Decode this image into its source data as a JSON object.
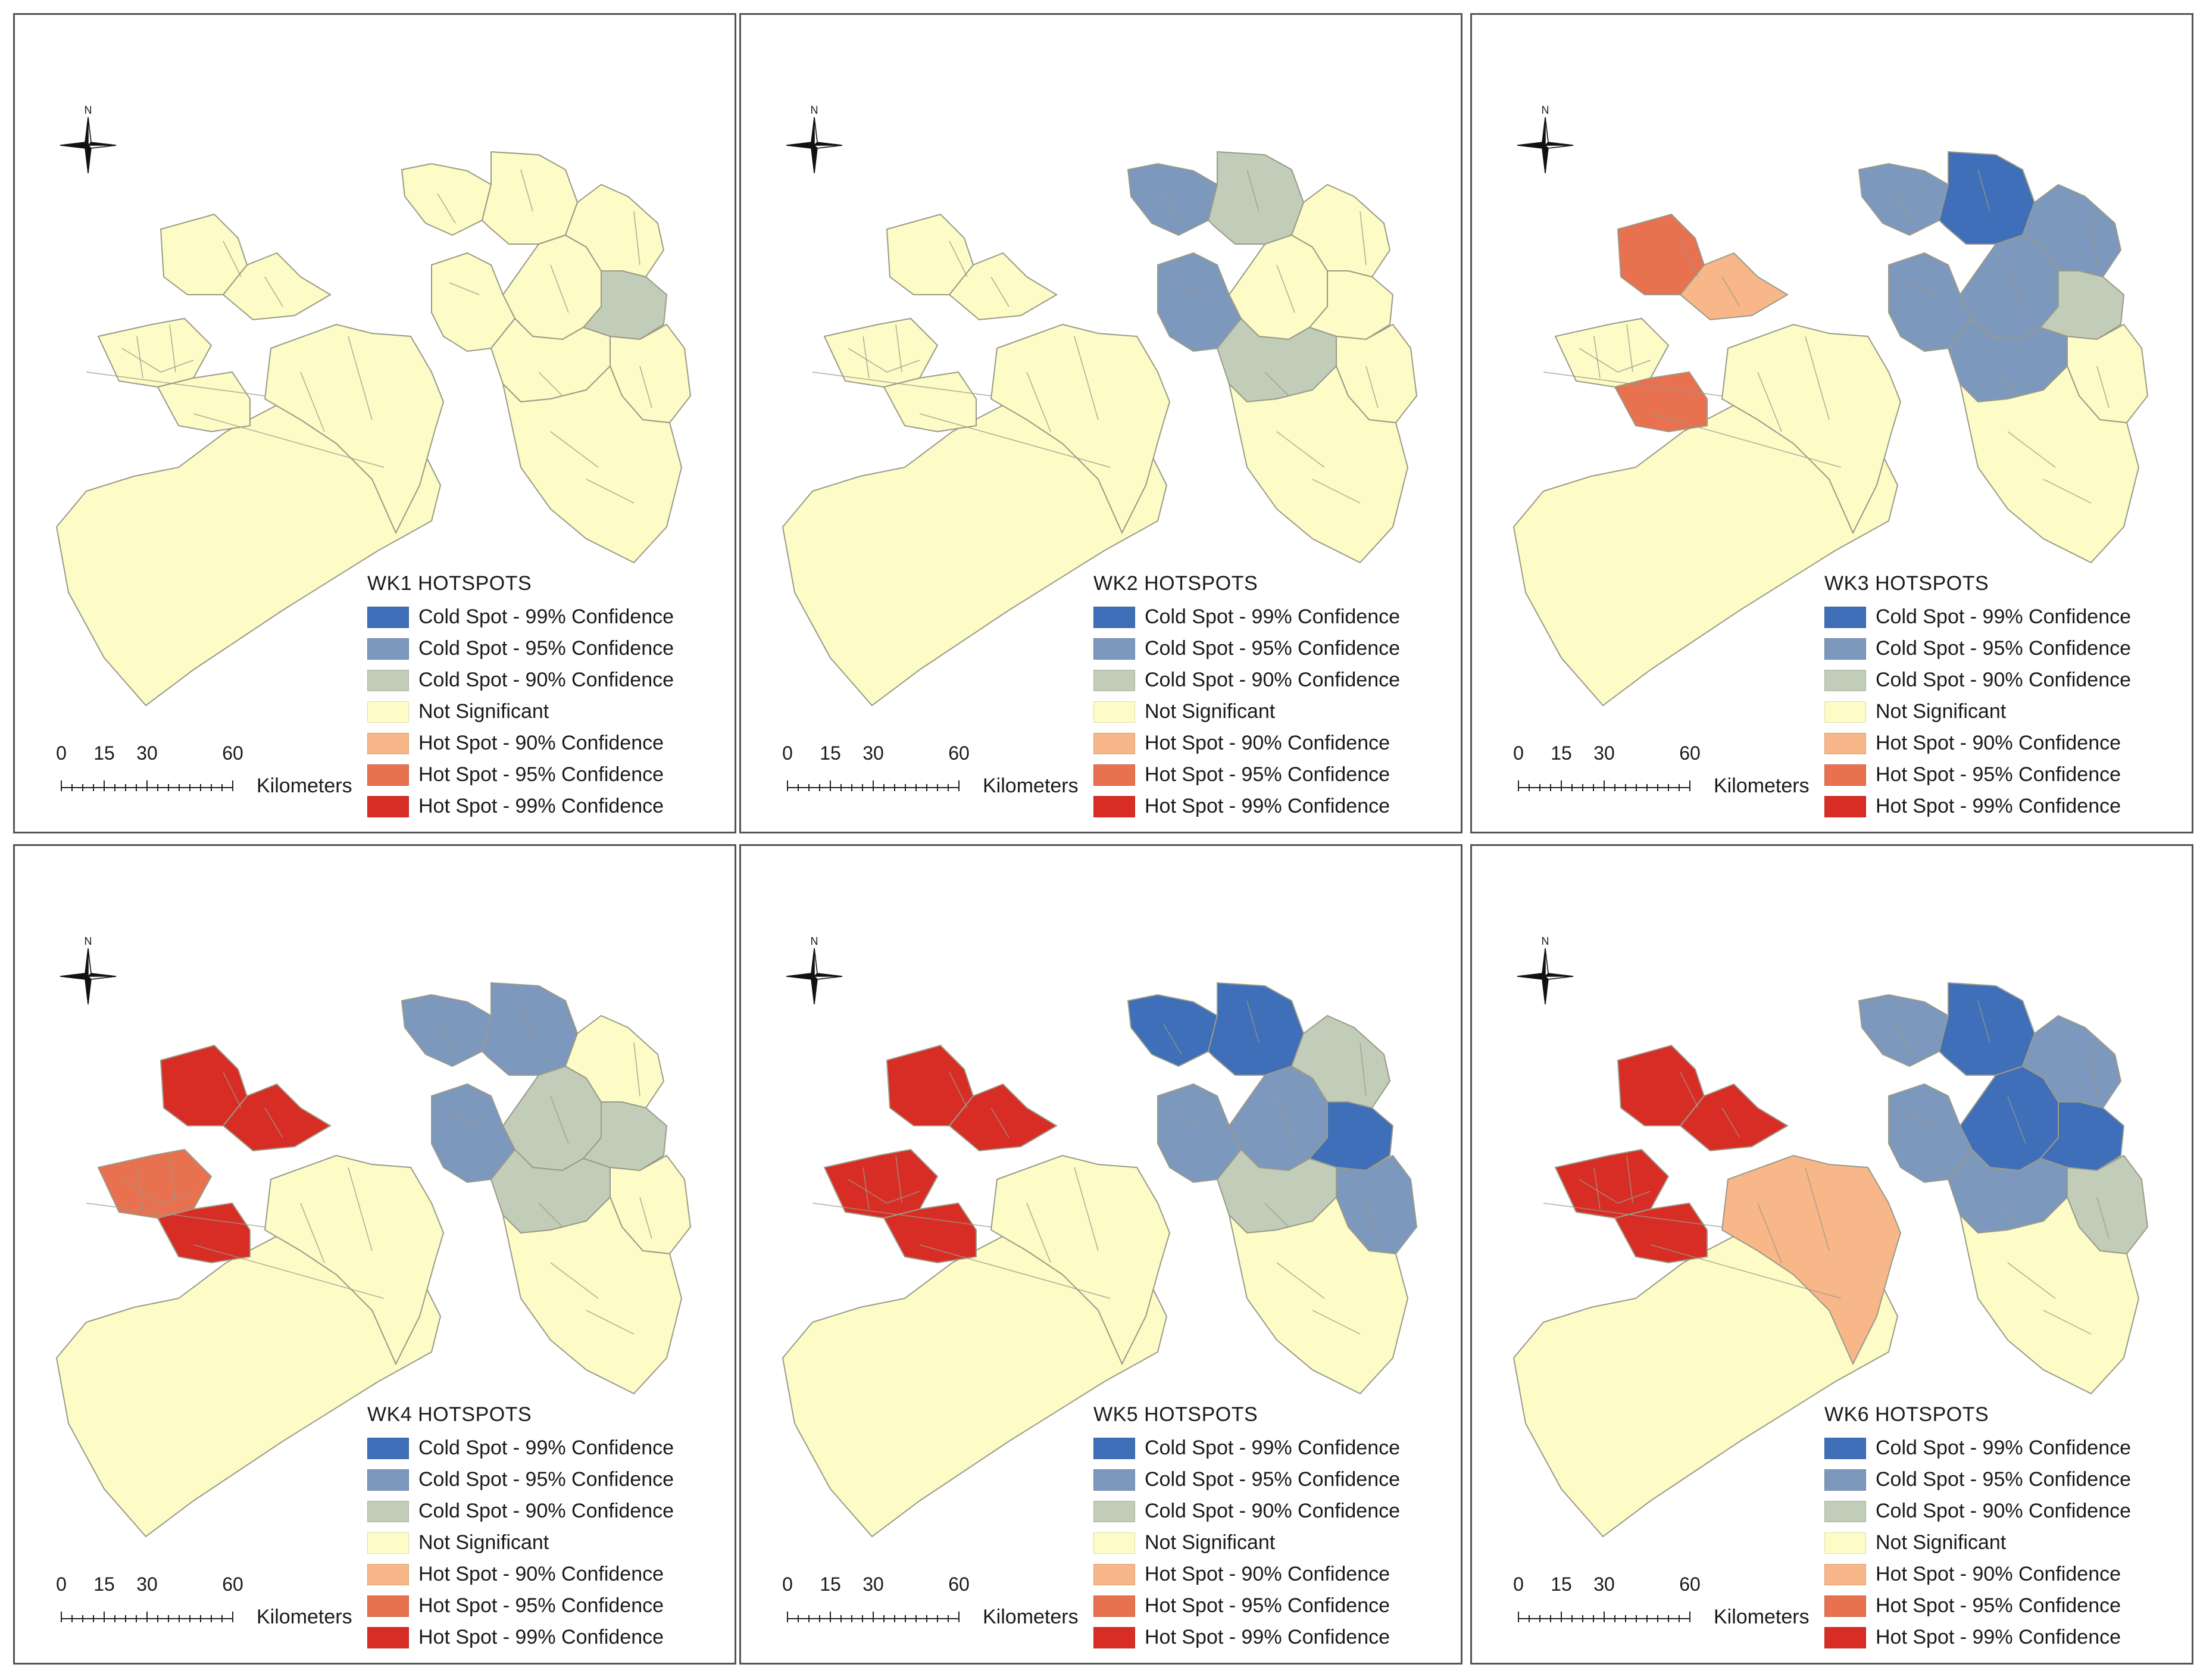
{
  "figure": {
    "legend_entries": [
      {
        "label": "Cold Spot - 99% Confidence",
        "color": "#3f6fb8"
      },
      {
        "label": "Cold Spot - 95% Confidence",
        "color": "#7d98bd"
      },
      {
        "label": "Cold Spot - 90% Confidence",
        "color": "#c2cdb9"
      },
      {
        "label": "Not Significant",
        "color": "#fdfbc6"
      },
      {
        "label": "Hot Spot - 90% Confidence",
        "color": "#f7b788"
      },
      {
        "label": "Hot Spot - 95% Confidence",
        "color": "#e8714f"
      },
      {
        "label": "Hot Spot - 99% Confidence",
        "color": "#d82d25"
      }
    ],
    "scale_bar": {
      "ticks": [
        "0",
        "15",
        "30",
        "60"
      ],
      "unit": "Kilometers"
    },
    "north_arrow": {
      "letter": "N",
      "icon": "compass-rose-icon"
    },
    "boundary_color": "#9a9a88"
  },
  "panels": [
    {
      "title": "WK1 HOTSPOTS",
      "regions": {
        "NW": "ns",
        "NWb": "ns",
        "W": "ns",
        "WS": "ns",
        "C": "ns",
        "N1": "ns",
        "N2": "ns",
        "N3": "ns",
        "NE": "ns",
        "E1": "c90",
        "E2": "ns",
        "M1": "ns",
        "M2": "ns",
        "SE": "ns",
        "S": "ns"
      }
    },
    {
      "title": "WK2 HOTSPOTS",
      "regions": {
        "NW": "ns",
        "NWb": "ns",
        "W": "ns",
        "WS": "ns",
        "C": "ns",
        "N1": "c95",
        "N2": "c90",
        "N3": "ns",
        "NE": "ns",
        "E1": "ns",
        "E2": "ns",
        "M1": "c95",
        "M2": "c90",
        "SE": "ns",
        "S": "ns"
      }
    },
    {
      "title": "WK3 HOTSPOTS",
      "regions": {
        "NW": "h95",
        "NWb": "h90",
        "W": "ns",
        "WS": "h95",
        "C": "ns",
        "N1": "c95",
        "N2": "c99",
        "N3": "c95",
        "NE": "c95",
        "E1": "c90",
        "E2": "ns",
        "M1": "c95",
        "M2": "c95",
        "SE": "ns",
        "S": "ns"
      }
    },
    {
      "title": "WK4 HOTSPOTS",
      "regions": {
        "NW": "h99",
        "NWb": "h99",
        "W": "h95",
        "WS": "h99",
        "C": "ns",
        "N1": "c95",
        "N2": "c95",
        "N3": "c90",
        "NE": "ns",
        "E1": "c90",
        "E2": "ns",
        "M1": "c95",
        "M2": "c90",
        "SE": "ns",
        "S": "ns"
      }
    },
    {
      "title": "WK5 HOTSPOTS",
      "regions": {
        "NW": "h99",
        "NWb": "h99",
        "W": "h99",
        "WS": "h99",
        "C": "ns",
        "N1": "c99",
        "N2": "c99",
        "N3": "c95",
        "NE": "c90",
        "E1": "c99",
        "E2": "c95",
        "M1": "c95",
        "M2": "c90",
        "SE": "ns",
        "S": "ns"
      }
    },
    {
      "title": "WK6 HOTSPOTS",
      "regions": {
        "NW": "h99",
        "NWb": "h99",
        "W": "h99",
        "WS": "h99",
        "C": "h90",
        "N1": "c95",
        "N2": "c99",
        "N3": "c99",
        "NE": "c95",
        "E1": "c99",
        "E2": "c90",
        "M1": "c95",
        "M2": "c95",
        "SE": "ns",
        "S": "ns"
      }
    }
  ]
}
